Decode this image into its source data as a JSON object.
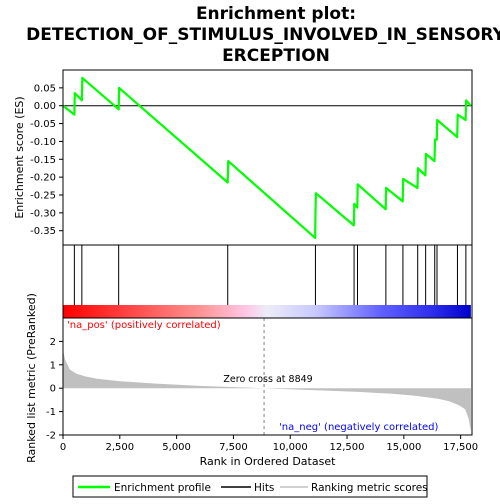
{
  "title_lines": [
    "Enrichment plot:",
    "DETECTION_OF_STIMULUS_INVOLVED_IN_SENSORY_P",
    "ERCEPTION"
  ],
  "colors": {
    "es_line": "#00ff00",
    "hits": "#000000",
    "metric_fill": "#c0c0c0",
    "pos_label": "#ff0000",
    "neg_label": "#0000ff",
    "zero_line": "#808080",
    "axis": "#000000"
  },
  "chart_data": {
    "type": "line",
    "xlim": [
      0,
      18000
    ],
    "x_ticks": [
      0,
      2500,
      5000,
      7500,
      10000,
      12500,
      15000,
      17500
    ],
    "x_tick_labels": [
      "0",
      "2,500",
      "5,000",
      "7,500",
      "10,000",
      "12,500",
      "15,000",
      "17,500"
    ],
    "xlabel": "Rank in Ordered Dataset",
    "es_panel": {
      "ylabel": "Enrichment score (ES)",
      "ylim": [
        -0.39,
        0.1
      ],
      "y_ticks": [
        0.05,
        0.0,
        -0.05,
        -0.1,
        -0.15,
        -0.2,
        -0.25,
        -0.3,
        -0.35
      ],
      "y_tick_labels": [
        "0.05",
        "0.00",
        "-0.05",
        "-0.10",
        "-0.15",
        "-0.20",
        "-0.25",
        "-0.30",
        "-0.35"
      ],
      "series": [
        {
          "name": "Enrichment profile",
          "x": [
            0,
            500,
            520,
            830,
            850,
            2450,
            2470,
            7250,
            7270,
            11100,
            11110,
            11130,
            12800,
            12820,
            12950,
            12970,
            14200,
            14220,
            14950,
            14970,
            15600,
            15620,
            15950,
            15970,
            16350,
            16370,
            16450,
            16470,
            17350,
            17370,
            17720,
            17740,
            17950
          ],
          "y": [
            0.0,
            -0.025,
            0.035,
            0.015,
            0.078,
            -0.01,
            0.05,
            -0.215,
            -0.155,
            -0.37,
            -0.31,
            -0.245,
            -0.335,
            -0.275,
            -0.285,
            -0.22,
            -0.29,
            -0.23,
            -0.268,
            -0.205,
            -0.23,
            -0.175,
            -0.195,
            -0.135,
            -0.155,
            -0.095,
            -0.095,
            -0.04,
            -0.088,
            -0.025,
            -0.04,
            0.015,
            0.0
          ]
        }
      ]
    },
    "hits": [
      500,
      830,
      2450,
      7250,
      11110,
      12810,
      12960,
      14210,
      14960,
      15610,
      15960,
      16360,
      16460,
      17360,
      17730
    ],
    "metric_panel": {
      "ylabel": "Ranked list metric (PreRanked)",
      "ylim": [
        -2,
        3
      ],
      "y_ticks": [
        2,
        1,
        0,
        -1,
        -2
      ],
      "y_tick_labels": [
        "2",
        "1",
        "0",
        "-1",
        "-2"
      ],
      "zero_cross_text": "Zero cross at 8849",
      "zero_cross": 8849,
      "pos_label": "'na_pos' (positively correlated)",
      "neg_label": "'na_neg' (negatively correlated)",
      "profile_x": [
        0,
        100,
        300,
        600,
        1000,
        1500,
        2500,
        4000,
        6000,
        8849,
        11000,
        13000,
        14500,
        15500,
        16500,
        17000,
        17400,
        17700,
        17850,
        17950
      ],
      "profile_y": [
        1.6,
        1.2,
        0.8,
        0.62,
        0.5,
        0.4,
        0.3,
        0.2,
        0.1,
        0.0,
        -0.08,
        -0.16,
        -0.24,
        -0.32,
        -0.45,
        -0.56,
        -0.72,
        -0.9,
        -1.3,
        -1.85
      ]
    },
    "legend": {
      "position": "bottom",
      "entries": [
        "Enrichment profile",
        "Hits",
        "Ranking metric scores"
      ]
    }
  }
}
